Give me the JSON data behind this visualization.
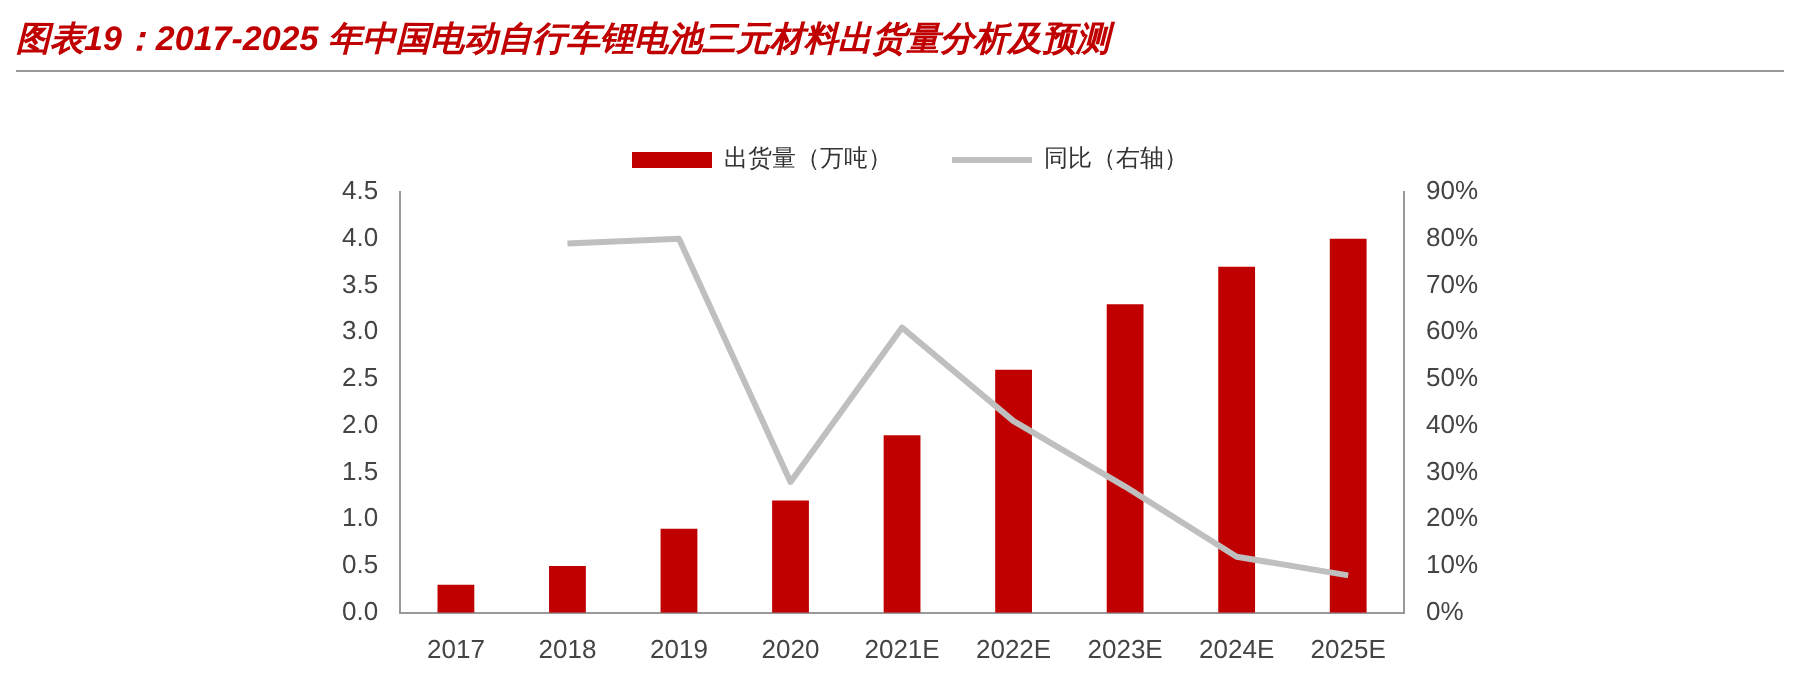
{
  "chart_data": {
    "type": "bar",
    "title": "图表19：2017-2025 年中国电动自行车锂电池三元材料出货量分析及预测",
    "categories": [
      "2017",
      "2018",
      "2019",
      "2020",
      "2021E",
      "2022E",
      "2023E",
      "2024E",
      "2025E"
    ],
    "series": [
      {
        "name": "出货量（万吨）",
        "color": "#c00000",
        "values": [
          0.3,
          0.5,
          0.9,
          1.2,
          1.9,
          2.6,
          3.3,
          3.7,
          4.0
        ]
      },
      {
        "name": "同比（右轴）",
        "type": "line",
        "axis": "y2",
        "color": "#bfbfbf",
        "values": [
          null,
          79,
          80,
          28,
          61,
          41,
          27,
          12,
          8
        ]
      }
    ],
    "ylim": [
      0,
      4.5
    ],
    "yticks": [
      {
        "value": 0,
        "label": "0.0"
      },
      0.5,
      {
        "value": 1,
        "label": "1.0"
      },
      1.5,
      {
        "value": 2,
        "label": "2.0"
      },
      2.5,
      {
        "value": 3,
        "label": "3.0"
      },
      3.5,
      {
        "value": 4,
        "label": "4.0"
      },
      4.5
    ],
    "y2lim": [
      0,
      90
    ],
    "y2ticks": [
      {
        "value": 0,
        "label": "0%"
      },
      {
        "value": 10,
        "label": "10%"
      },
      {
        "value": 20,
        "label": "20%"
      },
      {
        "value": 30,
        "label": "30%"
      },
      {
        "value": 40,
        "label": "40%"
      },
      {
        "value": 50,
        "label": "50%"
      },
      {
        "value": 60,
        "label": "60%"
      },
      {
        "value": 70,
        "label": "70%"
      },
      {
        "value": 80,
        "label": "80%"
      },
      {
        "value": 90,
        "label": "90%"
      }
    ],
    "grid": false,
    "legend": "top",
    "marker": "none"
  }
}
